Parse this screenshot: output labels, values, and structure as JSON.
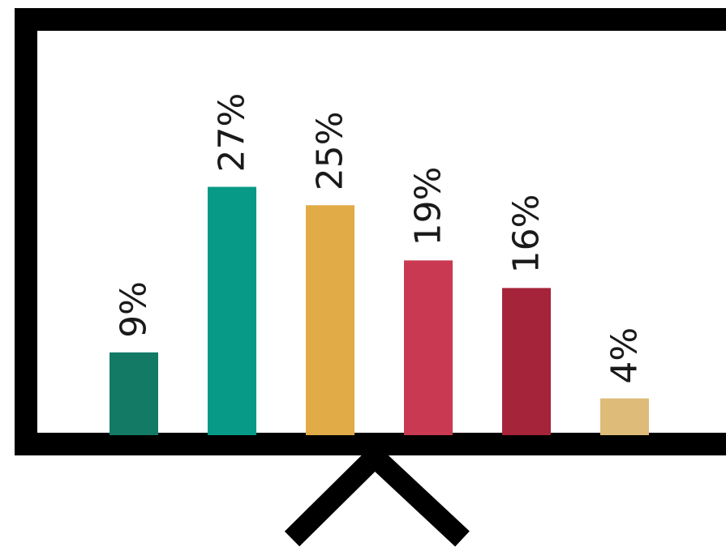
{
  "chart_data": {
    "type": "bar",
    "title": "",
    "xlabel": "",
    "ylabel": "",
    "ylim": [
      0,
      30
    ],
    "grid": false,
    "legend": "none",
    "categories": [
      "",
      "",
      "",
      "",
      "",
      ""
    ],
    "values": [
      9,
      27,
      25,
      19,
      16,
      4
    ],
    "labels": [
      "9%",
      "27%",
      "25%",
      "19%",
      "16%",
      "4%"
    ],
    "colors": [
      "#137a66",
      "#079a86",
      "#e1ab47",
      "#c93a52",
      "#a5243a",
      "#dfbb7a"
    ]
  },
  "style": {
    "frame_color": "#000000",
    "background": "#ffffff"
  }
}
